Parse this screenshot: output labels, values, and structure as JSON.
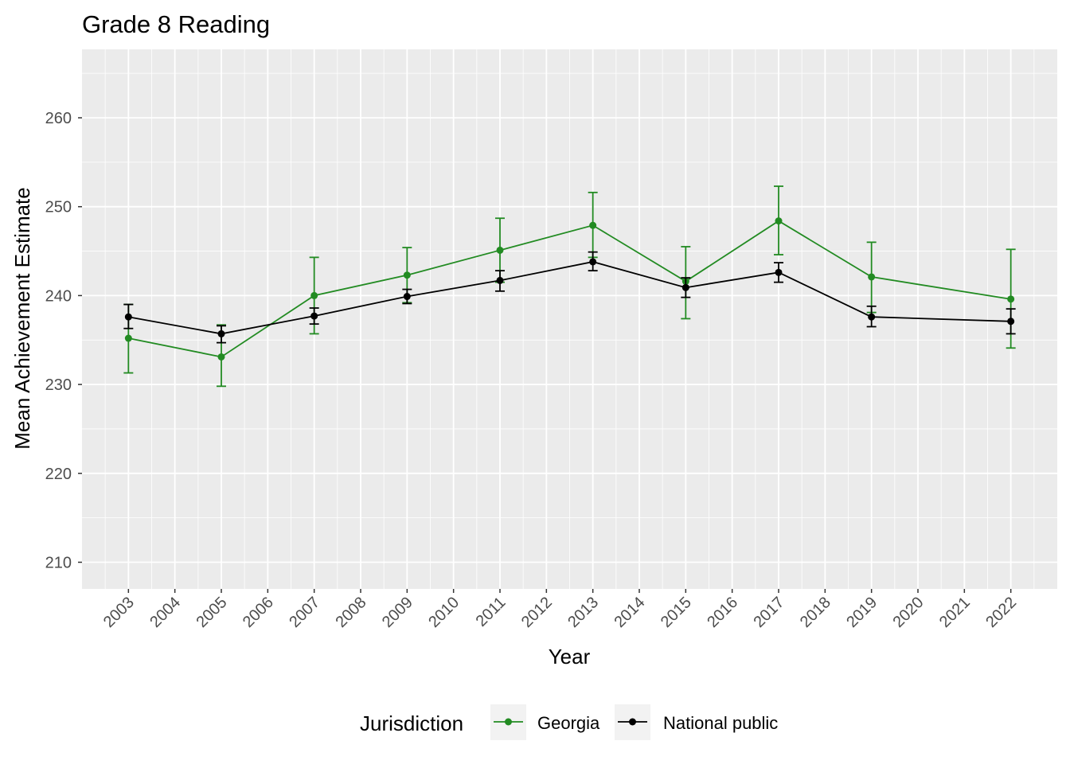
{
  "chart_data": {
    "type": "line",
    "title": "Grade 8 Reading",
    "xlabel": "Year",
    "ylabel": "Mean Achievement Estimate",
    "x_ticks": [
      2003,
      2004,
      2005,
      2006,
      2007,
      2008,
      2009,
      2010,
      2011,
      2012,
      2013,
      2014,
      2015,
      2016,
      2017,
      2018,
      2019,
      2020,
      2021,
      2022
    ],
    "y_ticks": [
      210,
      220,
      230,
      240,
      250,
      260
    ],
    "xlim": [
      2002,
      2023
    ],
    "ylim": [
      207,
      267.7
    ],
    "grid": true,
    "legend": {
      "title": "Jurisdiction",
      "position": "bottom"
    },
    "series": [
      {
        "name": "Georgia",
        "color": "#228b22",
        "x": [
          2003,
          2005,
          2007,
          2009,
          2011,
          2013,
          2015,
          2017,
          2019,
          2022
        ],
        "y": [
          235.2,
          233.1,
          240.0,
          242.3,
          245.1,
          247.9,
          241.6,
          248.4,
          242.1,
          239.6
        ],
        "lower": [
          231.3,
          229.8,
          235.7,
          239.2,
          241.5,
          244.3,
          237.4,
          244.6,
          238.1,
          234.1
        ],
        "upper": [
          239.0,
          236.7,
          244.3,
          245.4,
          248.7,
          251.6,
          245.5,
          252.3,
          246.0,
          245.2
        ]
      },
      {
        "name": "National public",
        "color": "#000000",
        "x": [
          2003,
          2005,
          2007,
          2009,
          2011,
          2013,
          2015,
          2017,
          2019,
          2022
        ],
        "y": [
          237.6,
          235.7,
          237.7,
          239.9,
          241.7,
          243.8,
          240.9,
          242.6,
          237.6,
          237.1
        ],
        "lower": [
          236.3,
          234.7,
          236.8,
          239.1,
          240.5,
          242.8,
          239.8,
          241.5,
          236.5,
          235.7
        ],
        "upper": [
          239.0,
          236.6,
          238.6,
          240.7,
          242.8,
          244.9,
          242.0,
          243.7,
          238.8,
          238.5
        ]
      }
    ]
  }
}
